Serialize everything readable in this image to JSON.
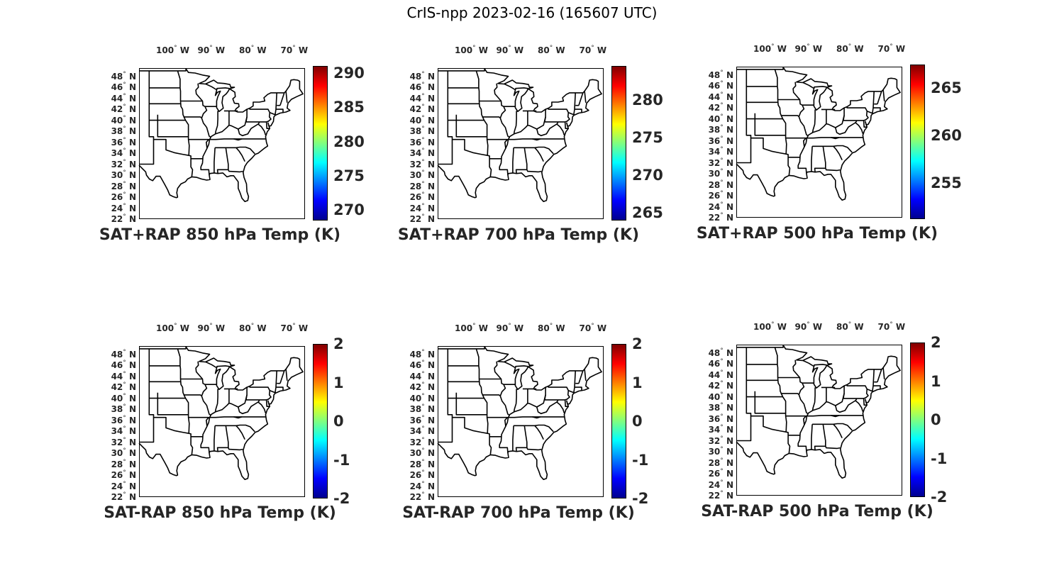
{
  "figure_title": "CrIS-npp 2023-02-16 (165607 UTC)",
  "lon_labels": [
    "100",
    "90",
    "80",
    "70"
  ],
  "lon_hemisphere": "W",
  "lat_labels": [
    "48",
    "46",
    "44",
    "42",
    "40",
    "38",
    "36",
    "34",
    "32",
    "30",
    "28",
    "26",
    "24",
    "22"
  ],
  "lat_hemisphere": "N",
  "degree_symbol": "°",
  "colormap": "jet",
  "panels": [
    {
      "title": "SAT+RAP 850 hPa Temp (K)",
      "colorbar_ticks": [
        "290",
        "285",
        "280",
        "275",
        "270"
      ],
      "colorbar_range": [
        268.5,
        291
      ]
    },
    {
      "title": "SAT+RAP 700 hPa Temp (K)",
      "colorbar_ticks": [
        "280",
        "275",
        "270",
        "265"
      ],
      "colorbar_range": [
        264,
        284.5
      ]
    },
    {
      "title": "SAT+RAP 500 hPa Temp (K)",
      "colorbar_ticks": [
        "265",
        "260",
        "255"
      ],
      "colorbar_range": [
        251.2,
        267.5
      ]
    },
    {
      "title": "SAT-RAP 850 hPa Temp (K)",
      "colorbar_ticks": [
        "2",
        "1",
        "0",
        "-1",
        "-2"
      ],
      "colorbar_range": [
        -2,
        2
      ]
    },
    {
      "title": "SAT-RAP 700 hPa Temp (K)",
      "colorbar_ticks": [
        "2",
        "1",
        "0",
        "-1",
        "-2"
      ],
      "colorbar_range": [
        -2,
        2
      ]
    },
    {
      "title": "SAT-RAP 500 hPa Temp (K)",
      "colorbar_ticks": [
        "2",
        "1",
        "0",
        "-1",
        "-2"
      ],
      "colorbar_range": [
        -2,
        2
      ]
    }
  ]
}
